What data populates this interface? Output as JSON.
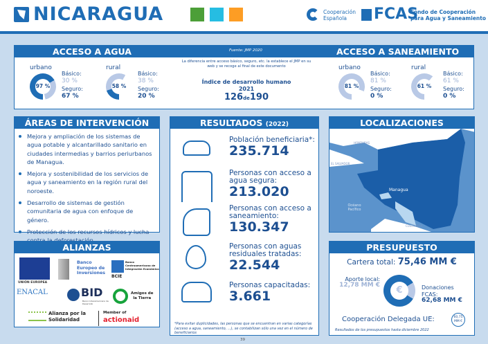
{
  "header": {
    "title": "NICARAGUA",
    "sdg_icons": [
      "sdg-3-health",
      "sdg-6-water",
      "sdg-11-cities"
    ],
    "logo_cooperacion": [
      "Cooperación",
      "Española"
    ],
    "logo_fcas_mark": "FCAS",
    "logo_fcas_text": [
      "Fondo de Cooperación",
      "para Agua y Saneamiento"
    ]
  },
  "acceso": {
    "agua_title": "ACCESO A AGUA",
    "saneamiento_title": "ACCESO A SANEAMIENTO",
    "fuente": "Fuente: JMP 2020",
    "nota": "La diferencia entre acceso básico, seguro, etc. la establece el JMP en su web y se recoge al final de este documento",
    "idh_label": "Índice de desarrollo humano 2021",
    "idh_rank": "126",
    "idh_de": "de",
    "idh_total": "190",
    "basico_label": "Básico:",
    "seguro_label": "Seguro:",
    "agua": [
      {
        "area": "urbano",
        "total": "97 %",
        "basico": "30 %",
        "seguro": "67 %",
        "total_pct": 97,
        "seguro_pct": 67
      },
      {
        "area": "rural",
        "total": "58 %",
        "basico": "38 %",
        "seguro": "20 %",
        "total_pct": 58,
        "seguro_pct": 20
      }
    ],
    "saneamiento": [
      {
        "area": "urbano",
        "total": "81 %",
        "basico": "81 %",
        "seguro": "0 %",
        "total_pct": 81,
        "seguro_pct": 0
      },
      {
        "area": "rural",
        "total": "61 %",
        "basico": "61 %",
        "seguro": "0 %",
        "total_pct": 61,
        "seguro_pct": 0
      }
    ],
    "colors": {
      "seguro": "#1f6db5",
      "basico": "#b9c9e6"
    }
  },
  "areas": {
    "title": "ÁREAS DE INTERVENCIÓN",
    "items": [
      "Mejora y ampliación de los sistemas de agua potable y alcantarillado sanitario en ciudades intermedias y barrios periurbanos de Managua.",
      "Mejora y sostenibilidad de los servicios de agua y saneamiento en la región rural del noroeste.",
      "Desarrollo de sistemas de gestión comunitaria de agua con enfoque de género.",
      "Protección de los recursos hídricos y lucha contra la deforestación."
    ]
  },
  "resultados": {
    "title": "RESULTADOS",
    "year": "(2022)",
    "items": [
      {
        "label": "Población beneficiaria*:",
        "value": "235.714",
        "icon": "people-icon"
      },
      {
        "label": "Personas con acceso a agua segura:",
        "value": "213.020",
        "icon": "faucet-icon"
      },
      {
        "label": "Personas con acceso a saneamiento:",
        "value": "130.347",
        "icon": "pipe-icon"
      },
      {
        "label": "Personas con aguas residuales tratadas:",
        "value": "22.544",
        "icon": "water-recycle-icon"
      },
      {
        "label": "Personas capacitadas:",
        "value": "3.661",
        "icon": "training-badge-icon"
      }
    ],
    "footnote": "*Para evitar duplicidades, las personas que se encuentran en varias categorías (acceso a agua, saneamiento, ...), se contabilizan sólo una vez en el número de beneficiarios"
  },
  "localizaciones": {
    "title": "LOCALIZACIONES",
    "labels": {
      "honduras": "HONDURAS",
      "el_salvador": "EL SALVADOR",
      "managua": "Managua",
      "oceano": "Océano Pacífico",
      "costa_rica": "COSTA RICA"
    }
  },
  "alianzas": {
    "title": "ALIANZAS",
    "logos": {
      "ue": "UNIÓN EUROPEA",
      "bei": [
        "Banco",
        "Europeo de",
        "Inversiones"
      ],
      "bcie_name": "Banco Centroamericano de Integración Económica",
      "bcie": "BCIE",
      "enacal": "ENACAL",
      "bid": "BID",
      "bid_sub": "Banco Interamericano de Desarrollo",
      "amigos": [
        "Amigos de",
        "la Tierra"
      ],
      "alianza": [
        "Alianza por la",
        "Solidaridad"
      ],
      "member_of": "Member of",
      "actionaid": "actionaid"
    }
  },
  "presupuesto": {
    "title": "PRESUPUESTO",
    "cartera_label": "Cartera total:",
    "cartera_value": "75,46 MM €",
    "aporte_label": "Aporte local:",
    "aporte_value": "12,78 MM €",
    "donaciones_label": [
      "Donaciones",
      "FCAS:"
    ],
    "donaciones_value": "62,68 MM €",
    "delegada_label": "Cooperación Delegada UE:",
    "delegada_value": [
      "60,75",
      "MM €"
    ],
    "nota": "Resultados de los presupuestos hasta diciembre 2022",
    "donaciones_share_pct": 83
  },
  "page_number": "39"
}
